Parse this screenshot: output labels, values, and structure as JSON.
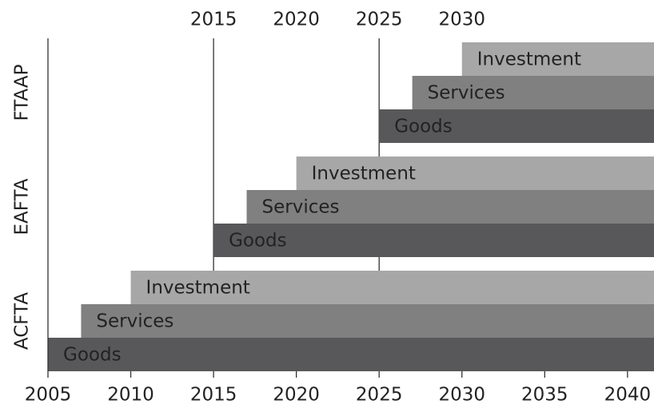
{
  "chart_data": {
    "type": "bar",
    "orientation": "horizontal",
    "categories": [
      "ACFTA",
      "EAFTA",
      "FTAAP"
    ],
    "series": [
      {
        "name": "Goods",
        "color": "#58585a",
        "values": [
          2005,
          2015,
          2025
        ]
      },
      {
        "name": "Services",
        "color": "#808080",
        "values": [
          2007,
          2017,
          2027
        ]
      },
      {
        "name": "Investment",
        "color": "#a7a7a7",
        "values": [
          2010,
          2020,
          2030
        ]
      }
    ],
    "xlim": [
      2005,
      2041.6
    ],
    "xticks": [
      2005,
      2010,
      2015,
      2020,
      2025,
      2030,
      2035,
      2040
    ],
    "x2ticks": [
      2015,
      2020,
      2025,
      2030
    ],
    "vlines": [
      2015,
      2025
    ]
  }
}
